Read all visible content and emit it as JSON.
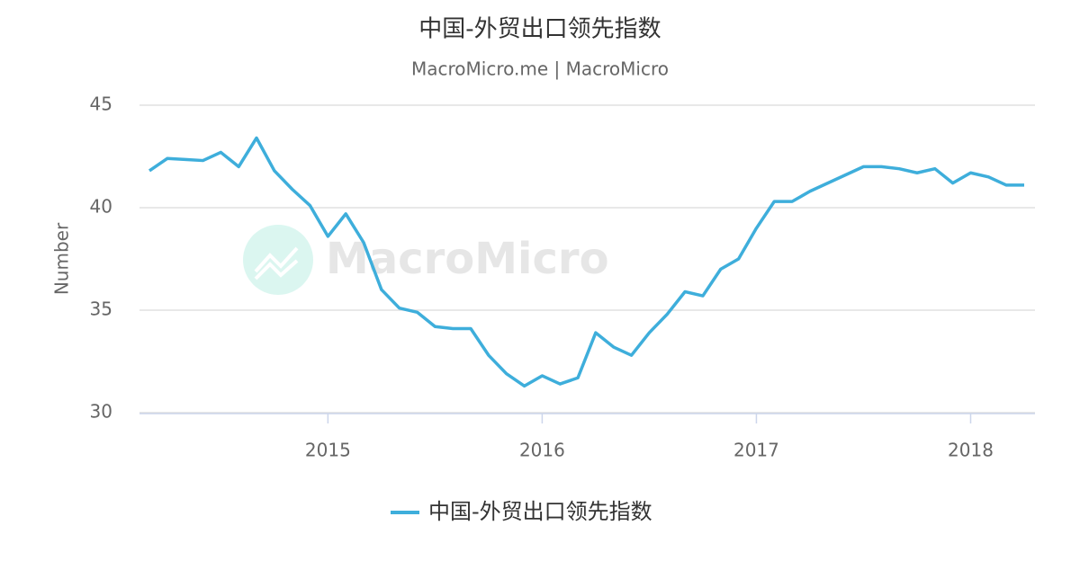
{
  "chart_data": {
    "type": "line",
    "title": "中国-外贸出口领先指数",
    "subtitle": "MacroMicro.me | MacroMicro",
    "watermark": "MacroMicro",
    "ylabel": "Number",
    "categories": [
      null,
      null,
      null,
      null,
      null,
      null,
      null,
      null,
      null,
      null,
      "2015",
      null,
      null,
      null,
      null,
      null,
      null,
      null,
      null,
      null,
      null,
      null,
      "2016",
      null,
      null,
      null,
      null,
      null,
      null,
      null,
      null,
      null,
      null,
      null,
      "2017",
      null,
      null,
      null,
      null,
      null,
      null,
      null,
      null,
      null,
      null,
      null,
      "2018",
      null,
      null,
      null
    ],
    "series": [
      {
        "name": "中国-外贸出口领先指数",
        "color": "#3eaedb",
        "values": [
          41.8,
          42.4,
          42.35,
          42.3,
          42.7,
          42.0,
          43.4,
          41.8,
          40.9,
          40.1,
          38.6,
          39.7,
          38.3,
          36.0,
          35.1,
          34.9,
          34.2,
          34.1,
          34.1,
          32.8,
          31.9,
          31.3,
          31.8,
          31.4,
          31.7,
          33.9,
          33.2,
          32.8,
          33.9,
          34.8,
          35.9,
          35.7,
          37.0,
          37.5,
          39.0,
          40.3,
          40.3,
          40.8,
          41.2,
          41.6,
          42.0,
          42.0,
          41.9,
          41.7,
          41.9,
          41.2,
          41.7,
          41.5,
          41.1,
          41.1
        ]
      }
    ],
    "ylim": [
      30,
      45
    ],
    "yticks": [
      30,
      35,
      40,
      45
    ],
    "grid": true,
    "legend": "bottom"
  }
}
